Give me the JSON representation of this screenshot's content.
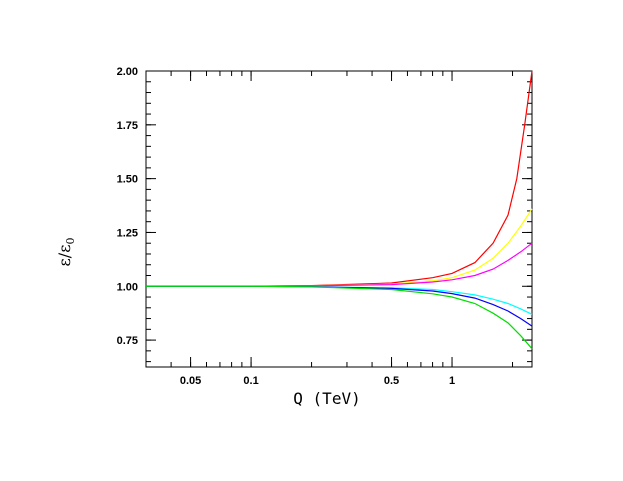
{
  "chart_data": {
    "type": "line",
    "title": "",
    "xlabel": "Q (TeV)",
    "ylabel": "ε/ε",
    "ylabel_subscript": "0",
    "x_scale": "log",
    "xlim": [
      0.03,
      2.5
    ],
    "ylim": [
      0.625,
      2.0
    ],
    "grid": false,
    "legend": "none",
    "x_ticks": [
      {
        "value": 0.05,
        "label": "0.05"
      },
      {
        "value": 0.1,
        "label": "0.1"
      },
      {
        "value": 0.5,
        "label": "0.5"
      },
      {
        "value": 1,
        "label": "1"
      }
    ],
    "y_ticks": [
      {
        "value": 0.75,
        "label": "0.75"
      },
      {
        "value": 1.0,
        "label": "1.00"
      },
      {
        "value": 1.25,
        "label": "1.25"
      },
      {
        "value": 1.5,
        "label": "1.50"
      },
      {
        "value": 1.75,
        "label": "1.75"
      },
      {
        "value": 2.0,
        "label": "2.00"
      }
    ],
    "series": [
      {
        "color": "#ff0000",
        "points": [
          [
            0.03,
            1.0
          ],
          [
            0.1,
            1.0
          ],
          [
            0.2,
            1.003
          ],
          [
            0.5,
            1.015
          ],
          [
            0.8,
            1.04
          ],
          [
            1.0,
            1.06
          ],
          [
            1.3,
            1.11
          ],
          [
            1.6,
            1.2
          ],
          [
            1.9,
            1.33
          ],
          [
            2.1,
            1.5
          ],
          [
            2.3,
            1.75
          ],
          [
            2.5,
            2.0
          ]
        ]
      },
      {
        "color": "#ffff00",
        "points": [
          [
            0.03,
            1.0
          ],
          [
            0.1,
            1.0
          ],
          [
            0.2,
            1.002
          ],
          [
            0.5,
            1.01
          ],
          [
            0.8,
            1.025
          ],
          [
            1.0,
            1.04
          ],
          [
            1.3,
            1.075
          ],
          [
            1.6,
            1.13
          ],
          [
            1.9,
            1.2
          ],
          [
            2.2,
            1.28
          ],
          [
            2.5,
            1.36
          ]
        ]
      },
      {
        "color": "#ff00ff",
        "points": [
          [
            0.03,
            1.0
          ],
          [
            0.1,
            1.0
          ],
          [
            0.2,
            1.002
          ],
          [
            0.5,
            1.008
          ],
          [
            0.8,
            1.02
          ],
          [
            1.0,
            1.03
          ],
          [
            1.3,
            1.05
          ],
          [
            1.6,
            1.08
          ],
          [
            1.9,
            1.12
          ],
          [
            2.2,
            1.16
          ],
          [
            2.5,
            1.2
          ]
        ]
      },
      {
        "color": "#00ffff",
        "points": [
          [
            0.03,
            1.0
          ],
          [
            0.1,
            1.0
          ],
          [
            0.2,
            0.998
          ],
          [
            0.5,
            0.993
          ],
          [
            0.8,
            0.985
          ],
          [
            1.0,
            0.975
          ],
          [
            1.3,
            0.96
          ],
          [
            1.6,
            0.94
          ],
          [
            1.9,
            0.92
          ],
          [
            2.2,
            0.895
          ],
          [
            2.5,
            0.87
          ]
        ]
      },
      {
        "color": "#0000ff",
        "points": [
          [
            0.03,
            1.0
          ],
          [
            0.1,
            1.0
          ],
          [
            0.2,
            0.998
          ],
          [
            0.5,
            0.99
          ],
          [
            0.8,
            0.978
          ],
          [
            1.0,
            0.966
          ],
          [
            1.3,
            0.945
          ],
          [
            1.6,
            0.915
          ],
          [
            1.9,
            0.885
          ],
          [
            2.2,
            0.85
          ],
          [
            2.5,
            0.815
          ]
        ]
      },
      {
        "color": "#00dd00",
        "points": [
          [
            0.03,
            1.0
          ],
          [
            0.1,
            1.0
          ],
          [
            0.2,
            0.997
          ],
          [
            0.5,
            0.985
          ],
          [
            0.8,
            0.965
          ],
          [
            1.0,
            0.95
          ],
          [
            1.3,
            0.92
          ],
          [
            1.6,
            0.875
          ],
          [
            1.9,
            0.83
          ],
          [
            2.2,
            0.77
          ],
          [
            2.5,
            0.71
          ]
        ]
      }
    ]
  }
}
